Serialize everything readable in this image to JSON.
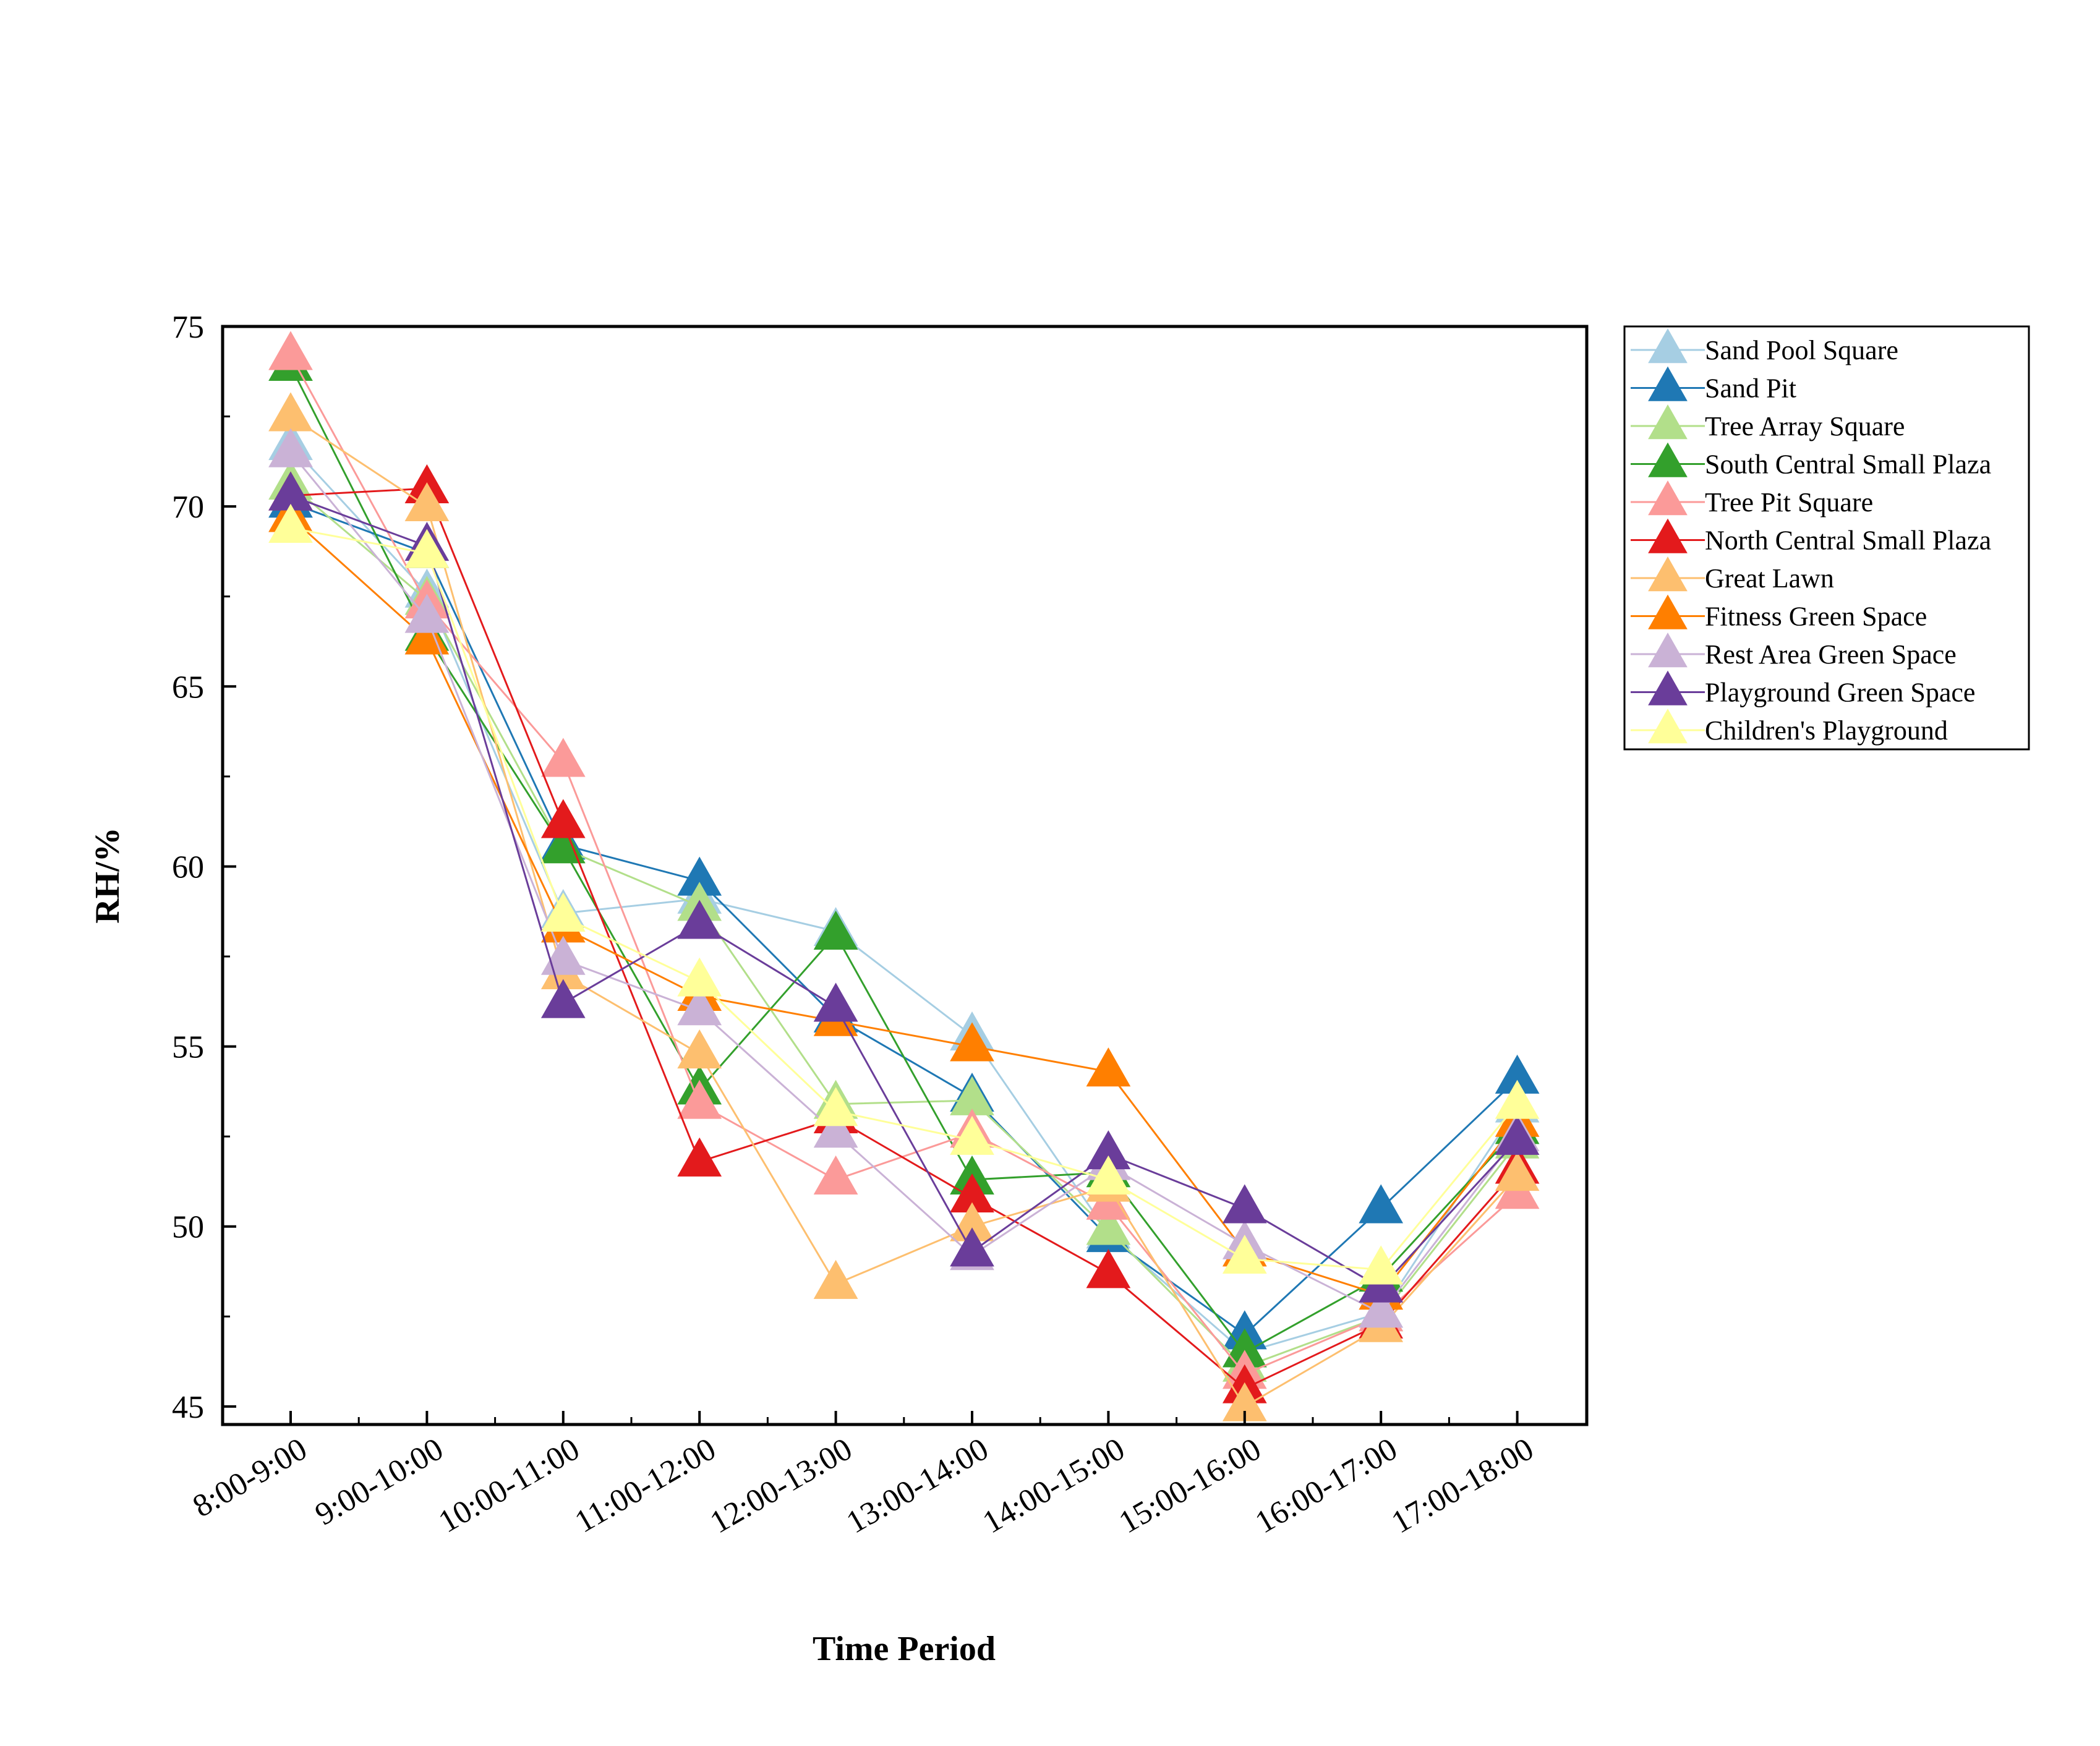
{
  "chart_data": {
    "type": "line",
    "title": "",
    "xlabel": "Time Period",
    "ylabel": "RH/%",
    "ylim": [
      44.5,
      75
    ],
    "yticks": [
      45,
      50,
      55,
      60,
      65,
      70,
      75
    ],
    "grid": false,
    "legend_position": "right",
    "marker": "triangle",
    "categories": [
      "8:00-9:00",
      "9:00-10:00",
      "10:00-11:00",
      "11:00-12:00",
      "12:00-13:00",
      "13:00-14:00",
      "14:00-15:00",
      "15:00-16:00",
      "16:00-17:00",
      "17:00-18:00"
    ],
    "series": [
      {
        "name": "Sand Pool Square",
        "color": "#a6cee3",
        "values": [
          71.7,
          67.6,
          58.7,
          59.1,
          58.2,
          55.3,
          49.8,
          46.5,
          47.6,
          53.3
        ]
      },
      {
        "name": "Sand Pit",
        "color": "#1f78b4",
        "values": [
          70.1,
          68.7,
          60.6,
          59.6,
          55.8,
          53.6,
          49.7,
          47.0,
          50.5,
          54.1
        ]
      },
      {
        "name": "Tree Array Square",
        "color": "#b2df8a",
        "values": [
          70.6,
          67.4,
          60.5,
          58.9,
          53.4,
          53.5,
          49.9,
          46.1,
          47.5,
          52.3
        ]
      },
      {
        "name": "South Central Small Plaza",
        "color": "#33a02c",
        "values": [
          73.9,
          66.4,
          60.5,
          53.8,
          58.1,
          51.3,
          51.5,
          46.5,
          48.6,
          52.7
        ]
      },
      {
        "name": "Tree Pit Square",
        "color": "#fb9a99",
        "values": [
          74.2,
          67.3,
          62.9,
          53.4,
          51.3,
          52.6,
          50.6,
          45.9,
          47.5,
          50.9
        ]
      },
      {
        "name": "North Central Small Plaza",
        "color": "#e31a1c",
        "values": [
          70.3,
          70.5,
          61.2,
          51.8,
          53.0,
          50.8,
          48.7,
          45.5,
          47.3,
          51.6
        ]
      },
      {
        "name": "Great Lawn",
        "color": "#fdbf6f",
        "values": [
          72.5,
          70.0,
          57.0,
          54.8,
          48.4,
          50.0,
          51.1,
          45.0,
          47.2,
          51.4
        ]
      },
      {
        "name": "Fitness Green Space",
        "color": "#ff7f00",
        "values": [
          69.7,
          66.3,
          58.3,
          56.4,
          55.7,
          55.0,
          54.3,
          49.3,
          48.1,
          52.9
        ]
      },
      {
        "name": "Rest Area Green Space",
        "color": "#cab2d6",
        "values": [
          71.5,
          66.9,
          57.4,
          56.0,
          52.6,
          49.2,
          51.7,
          49.5,
          47.6,
          52.5
        ]
      },
      {
        "name": "Playground Green Space",
        "color": "#6a3d9a",
        "values": [
          70.3,
          68.9,
          56.2,
          58.4,
          56.1,
          49.3,
          52.0,
          50.5,
          48.3,
          52.4
        ]
      },
      {
        "name": "Children's Playground",
        "color": "#ffff99",
        "values": [
          69.4,
          68.7,
          58.6,
          56.8,
          53.2,
          52.4,
          51.3,
          49.1,
          48.8,
          53.4
        ]
      }
    ]
  }
}
